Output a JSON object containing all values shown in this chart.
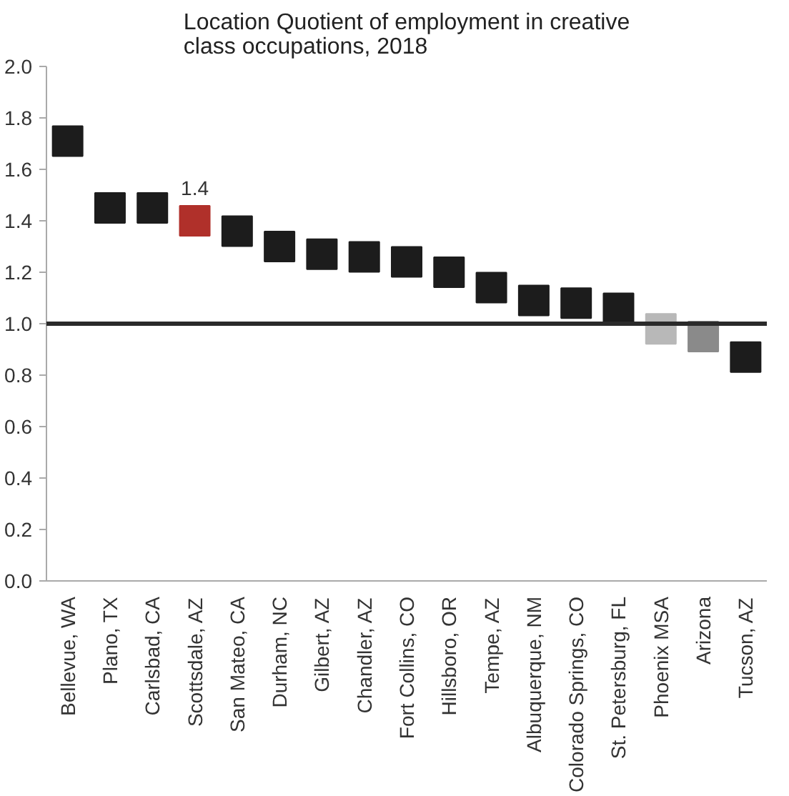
{
  "chart_data": {
    "type": "scatter",
    "title": "Location Quotient of employment in creative\nclass occupations, 2018",
    "categories": [
      "Bellevue, WA",
      "Plano, TX",
      "Carlsbad, CA",
      "Scottsdale, AZ",
      "San Mateo, CA",
      "Durham, NC",
      "Gilbert, AZ",
      "Chandler, AZ",
      "Fort Collins, CO",
      "Hillsboro, OR",
      "Tempe, AZ",
      "Albuquerque, NM",
      "Colorado Springs, CO",
      "St. Petersburg, FL",
      "Phoenix MSA",
      "Arizona",
      "Tucson, AZ"
    ],
    "values": [
      1.71,
      1.45,
      1.45,
      1.4,
      1.36,
      1.3,
      1.27,
      1.26,
      1.24,
      1.2,
      1.14,
      1.09,
      1.08,
      1.06,
      0.98,
      0.95,
      0.87
    ],
    "colors": [
      "#1c1c1c",
      "#1c1c1c",
      "#1c1c1c",
      "#b0302a",
      "#1c1c1c",
      "#1c1c1c",
      "#1c1c1c",
      "#1c1c1c",
      "#1c1c1c",
      "#1c1c1c",
      "#1c1c1c",
      "#1c1c1c",
      "#1c1c1c",
      "#1c1c1c",
      "#b8b8b8",
      "#8a8a8a",
      "#1c1c1c"
    ],
    "value_labels": [
      null,
      null,
      null,
      "1.4",
      null,
      null,
      null,
      null,
      null,
      null,
      null,
      null,
      null,
      null,
      null,
      null,
      null
    ],
    "ylim": [
      0,
      2.0
    ],
    "yticks": [
      {
        "value": 0,
        "label": "0.0"
      },
      {
        "value": 0.2,
        "label": "0.2"
      },
      {
        "value": 0.4,
        "label": "0.4"
      },
      {
        "value": 0.6,
        "label": "0.6"
      },
      {
        "value": 0.8,
        "label": "0.8"
      },
      {
        "value": 1.0,
        "label": "1.0"
      },
      {
        "value": 1.2,
        "label": "1.2"
      },
      {
        "value": 1.4,
        "label": "1.4"
      },
      {
        "value": 1.6,
        "label": "1.6"
      },
      {
        "value": 1.8,
        "label": "1.8"
      },
      {
        "value": 2.0,
        "label": "2.0"
      }
    ],
    "ref_lines": [
      {
        "axis": "y",
        "value": 1.0,
        "color": "#2a2a2a"
      }
    ],
    "marker": "square",
    "grid": false
  }
}
